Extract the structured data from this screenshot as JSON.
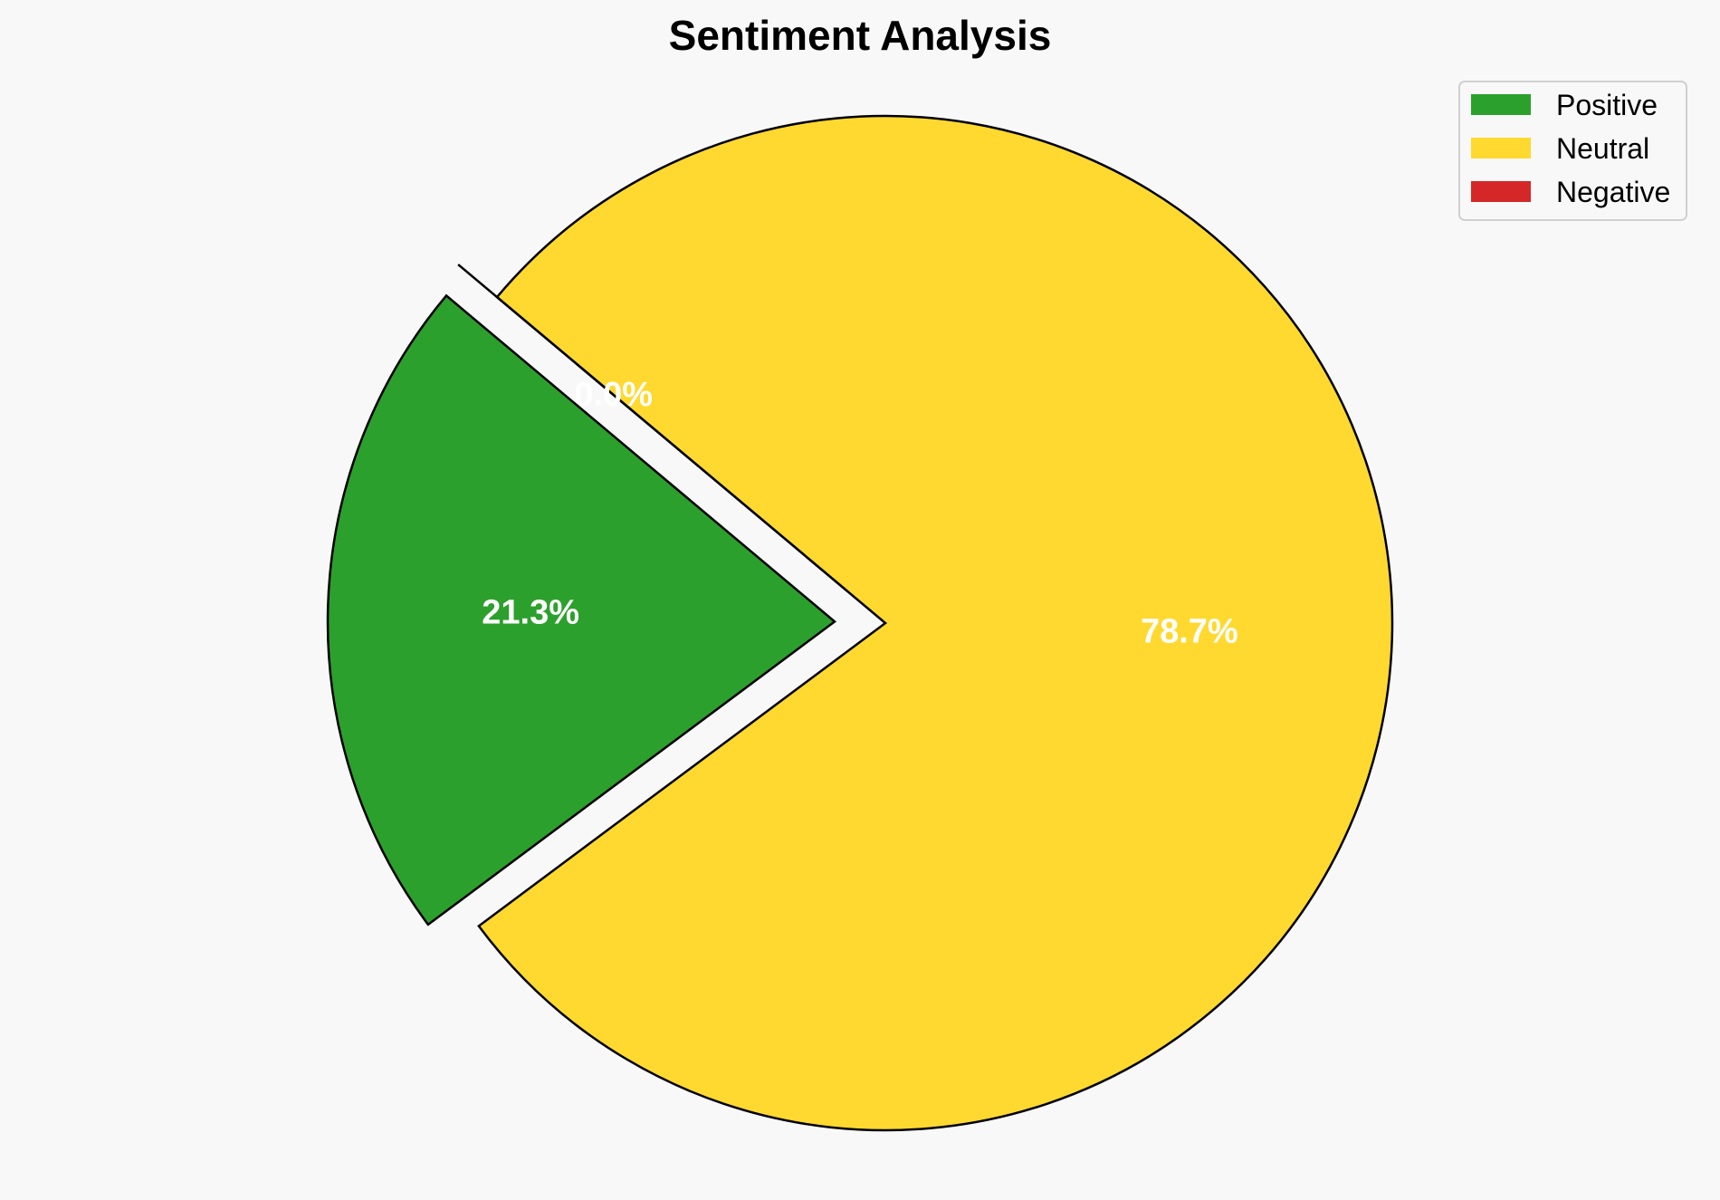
{
  "chart_data": {
    "type": "pie",
    "title": "Sentiment Analysis",
    "slices": [
      {
        "label": "Positive",
        "value": 21.3,
        "pct_label": "21.3%",
        "color": "#2ca02c",
        "explode": 0.1
      },
      {
        "label": "Neutral",
        "value": 78.7,
        "pct_label": "78.7%",
        "color": "#ffd92f",
        "explode": 0
      },
      {
        "label": "Negative",
        "value": 0.0,
        "pct_label": "0.0%",
        "color": "#d62728",
        "explode": 0.1
      }
    ],
    "start_angle_deg": 140,
    "direction": "counterclockwise",
    "legend_position": "top-right"
  }
}
